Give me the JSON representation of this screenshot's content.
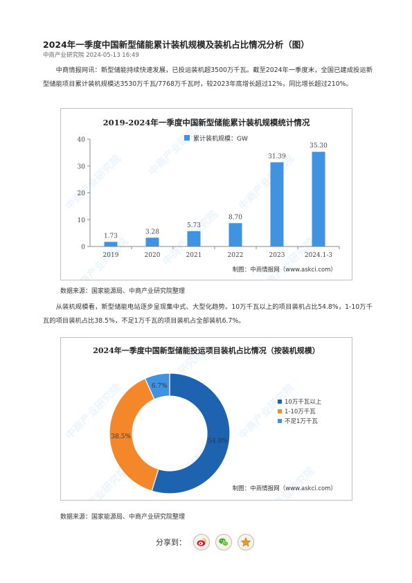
{
  "article": {
    "title": "2024年一季度中国新型储能累计装机规模及装机占比情况分析（图）",
    "meta": "中商产业研究院 2024-05-13 16:49",
    "para1": "中商情报网讯：新型储能持续快速发展，已投运装机超3500万千瓦。截至2024年一季度末，全国已建成投运新型储能项目累计装机规模达3530万千瓦/7768万千瓦时，较2023年底增长超过12%，同比增长超过210%。",
    "source1": "数据来源：国家能源局、中商产业研究院整理",
    "para2": "从装机规模看，新型储能电站逐步呈现集中式、大型化趋势。10万千瓦以上的项目装机占比54.8%，1-10万千瓦的项目装机占比38.5%，不足1万千瓦的项目装机占全部装机6.7%。",
    "source2": "数据来源：国家能源局、中商产业研究院整理"
  },
  "watermark": "中商产业研究院",
  "chart_data": [
    {
      "type": "bar",
      "title": "2019-2024年一季度中国新型储能累计装机规模统计情况",
      "categories": [
        "2019",
        "2020",
        "2021",
        "2022",
        "2023",
        "2024.1-3"
      ],
      "series": [
        {
          "name": "累计装机规模：GW",
          "values": [
            1.73,
            3.28,
            5.73,
            8.7,
            31.39,
            35.3
          ]
        }
      ],
      "value_labels": [
        "1.73",
        "3.28",
        "5.73",
        "8.70",
        "31.39",
        "35.30"
      ],
      "yticks": [
        "0",
        "10",
        "20",
        "30",
        "40"
      ],
      "ylim": [
        0,
        40
      ],
      "legend_position": "top-center",
      "grid": false,
      "credit": "制图：中商情报网（www.askci.com）",
      "color": "#3f93e0"
    },
    {
      "type": "pie",
      "title": "2024年一季度中国新型储能投运项目装机占比情况（按装机规模）",
      "slices": [
        {
          "name": "10万千瓦以上",
          "value": 54.8,
          "label": "54.8%",
          "color": "#1e63b0"
        },
        {
          "name": "1-10万千瓦",
          "value": 38.5,
          "label": "38.5%",
          "color": "#f5872b"
        },
        {
          "name": "不足1万千瓦",
          "value": 6.7,
          "label": "6.7%",
          "color": "#3f93e0"
        }
      ],
      "legend_position": "right",
      "credit": "制图：中商情报网（www.askci.com）"
    }
  ],
  "share": {
    "label": "分享到：",
    "buttons": [
      {
        "icon": "weibo-icon"
      },
      {
        "icon": "wechat-icon"
      },
      {
        "icon": "favorite-star-icon"
      }
    ]
  },
  "colors": {
    "frame": "#bfbfbf",
    "axis": "#555555",
    "text": "#333333"
  }
}
